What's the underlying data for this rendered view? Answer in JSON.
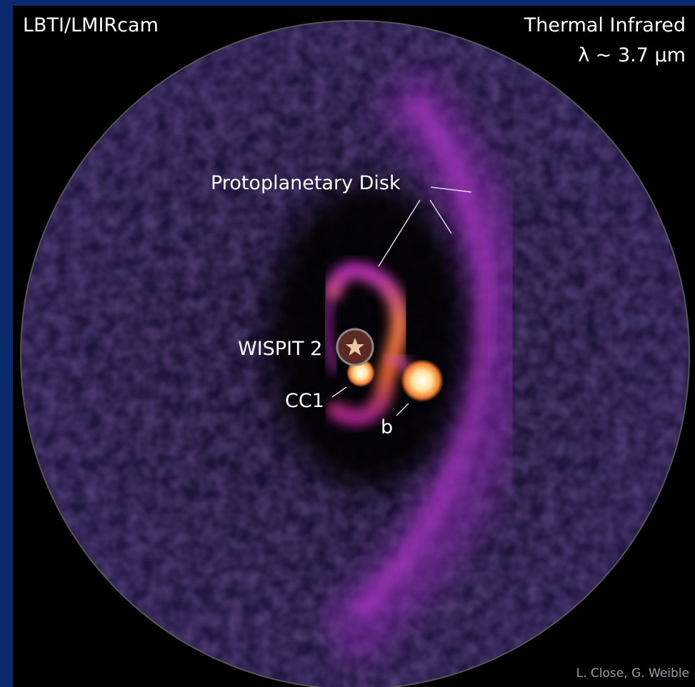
{
  "labels": {
    "instrument": "LBTI/LMIRcam",
    "band": "Thermal Infrared",
    "wavelength": "λ ~ 3.7 µm",
    "disk": "Protoplanetary Disk",
    "star": "WISPIT 2",
    "companion": "CC1",
    "planet": "b",
    "credit": "L. Close, G. Weible"
  }
}
